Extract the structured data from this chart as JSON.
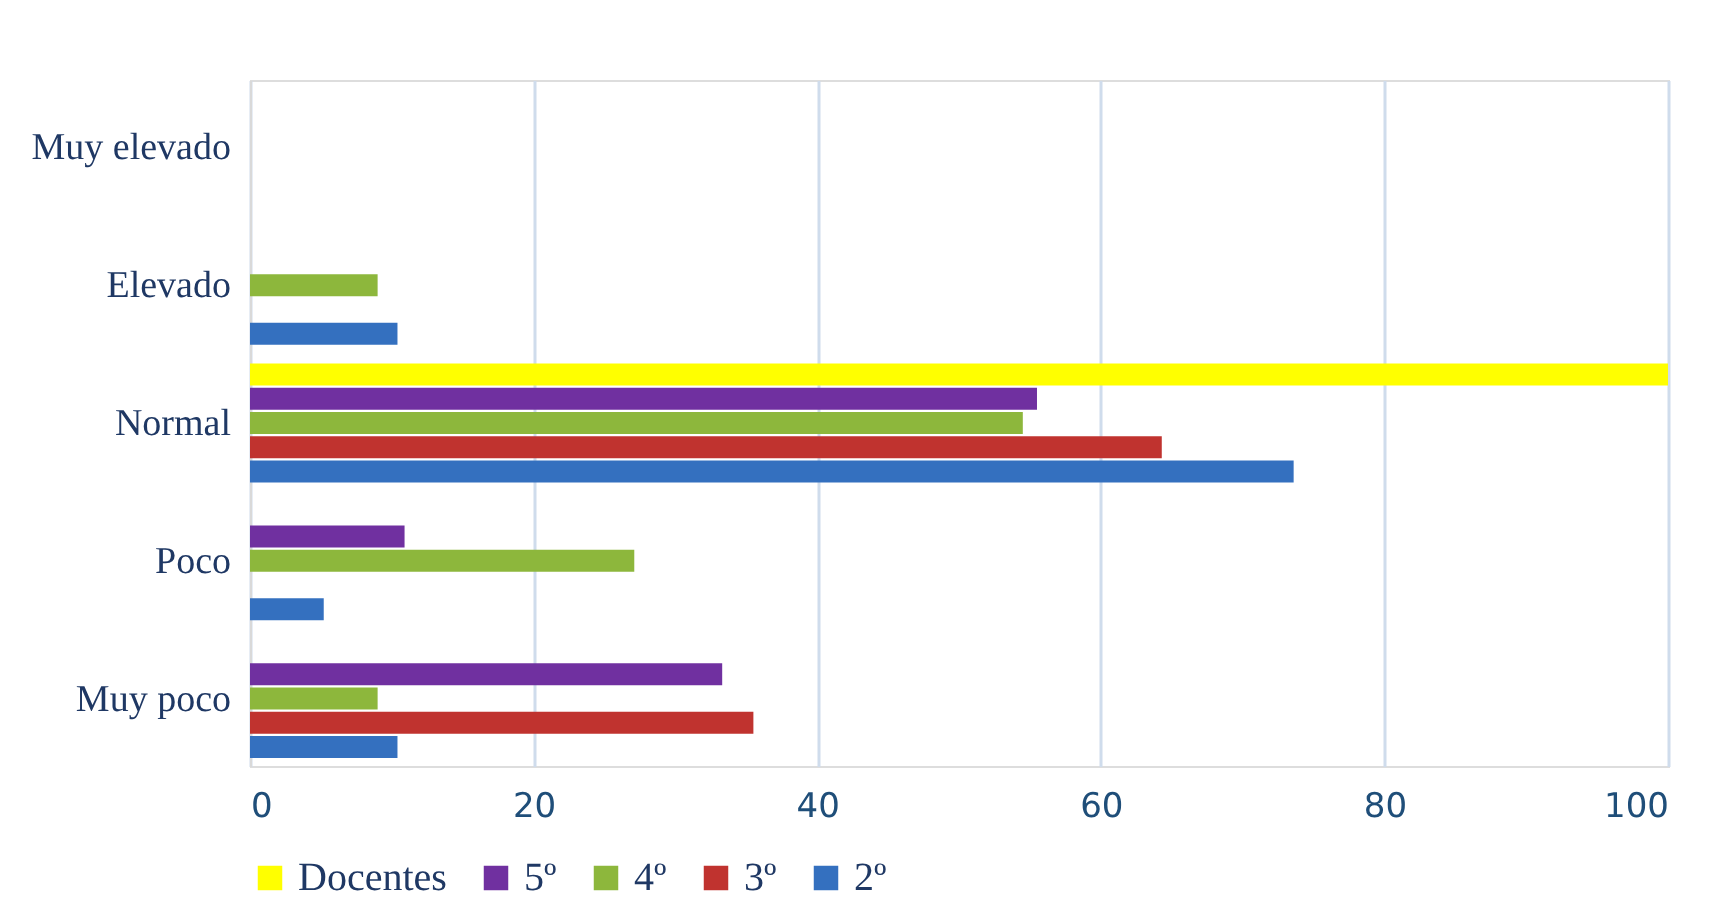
{
  "chart_data": {
    "type": "bar",
    "orientation": "horizontal",
    "categories": [
      "Muy elevado",
      "Elevado",
      "Normal",
      "Poco",
      "Muy poco"
    ],
    "series": [
      {
        "name": "Docentes",
        "color": "#ffff00",
        "values": [
          null,
          null,
          100,
          null,
          null
        ]
      },
      {
        "name": "5º",
        "color": "#7030a0",
        "values": [
          null,
          null,
          55.5,
          10.9,
          33.3
        ]
      },
      {
        "name": "4º",
        "color": "#8db73c",
        "values": [
          null,
          9.0,
          54.5,
          27.1,
          9.0
        ]
      },
      {
        "name": "3º",
        "color": "#c0332f",
        "values": [
          null,
          null,
          64.3,
          null,
          35.5
        ]
      },
      {
        "name": "2º",
        "color": "#3470bf",
        "values": [
          null,
          10.4,
          73.6,
          5.2,
          10.4
        ]
      }
    ],
    "xlim": [
      0,
      100
    ],
    "xticks": [
      0,
      20,
      40,
      60,
      80,
      100
    ],
    "grid": "x",
    "legend": "bottom"
  }
}
